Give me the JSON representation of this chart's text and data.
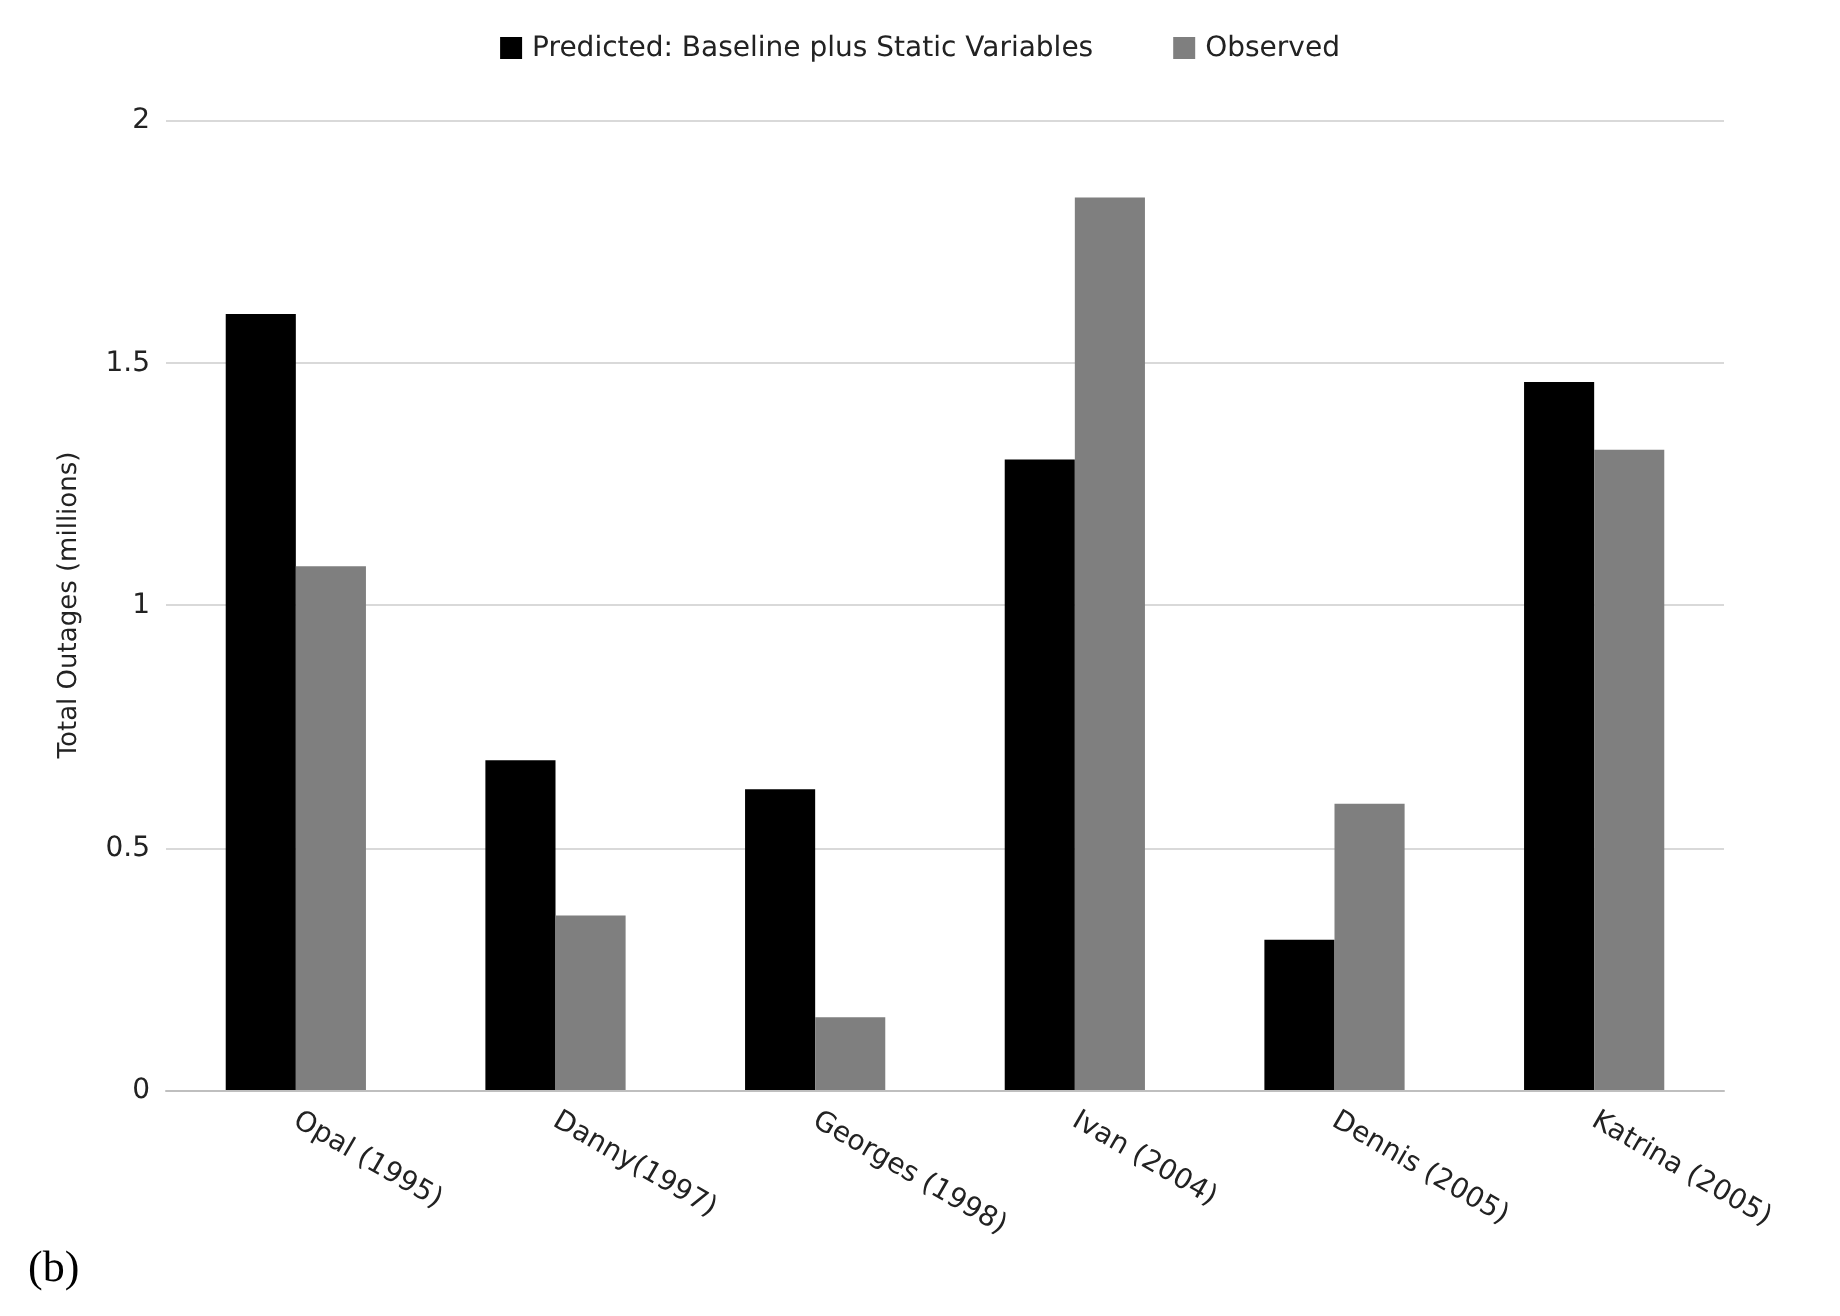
{
  "chart_data": {
    "type": "bar",
    "ylabel": "Total Outages (millions)",
    "categories": [
      "Opal (1995)",
      "Danny(1997)",
      "Georges (1998)",
      "Ivan (2004)",
      "Dennis (2005)",
      "Katrina (2005)"
    ],
    "series": [
      {
        "name": "Predicted: Baseline plus Static Variables",
        "color": "#000000",
        "values": [
          1.6,
          0.68,
          0.62,
          1.3,
          0.31,
          1.46
        ]
      },
      {
        "name": "Observed",
        "color": "#7f7f7f",
        "values": [
          1.08,
          0.36,
          0.15,
          1.84,
          0.59,
          1.32
        ]
      }
    ],
    "ylim": [
      0,
      2
    ],
    "yticks": [
      0,
      0.5,
      1,
      1.5,
      2
    ],
    "grid": "y",
    "legend": "top",
    "annotations": [
      "(b)"
    ]
  }
}
